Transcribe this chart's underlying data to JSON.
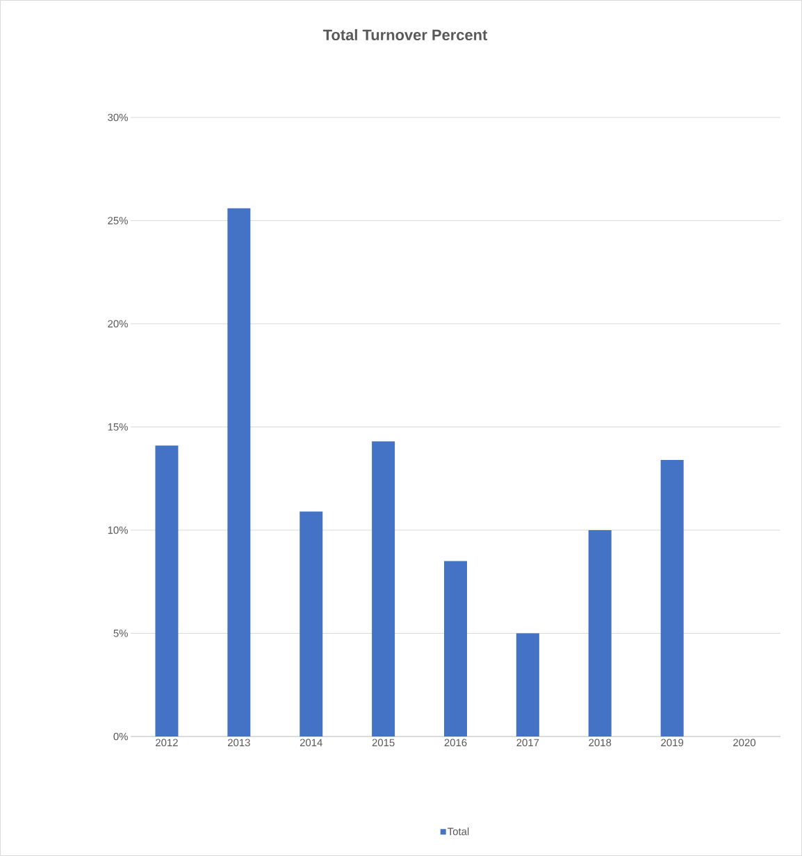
{
  "chart_data": {
    "type": "bar",
    "title": "Total Turnover Percent",
    "categories": [
      "2012",
      "2013",
      "2014",
      "2015",
      "2016",
      "2017",
      "2018",
      "2019",
      "2020"
    ],
    "series": [
      {
        "name": "Total",
        "color": "#4472c4",
        "values": [
          14.1,
          25.6,
          10.9,
          14.3,
          8.5,
          5.0,
          10.0,
          13.4,
          null
        ]
      }
    ],
    "ylim": [
      0,
      30
    ],
    "yticks": [
      {
        "value": 0,
        "label": "0%"
      },
      {
        "value": 5,
        "label": "5%"
      },
      {
        "value": 10,
        "label": "10%"
      },
      {
        "value": 15,
        "label": "15%"
      },
      {
        "value": 20,
        "label": "20%"
      },
      {
        "value": 25,
        "label": "25%"
      },
      {
        "value": 30,
        "label": "30%"
      }
    ],
    "grid": "y",
    "legend": "bottom"
  }
}
